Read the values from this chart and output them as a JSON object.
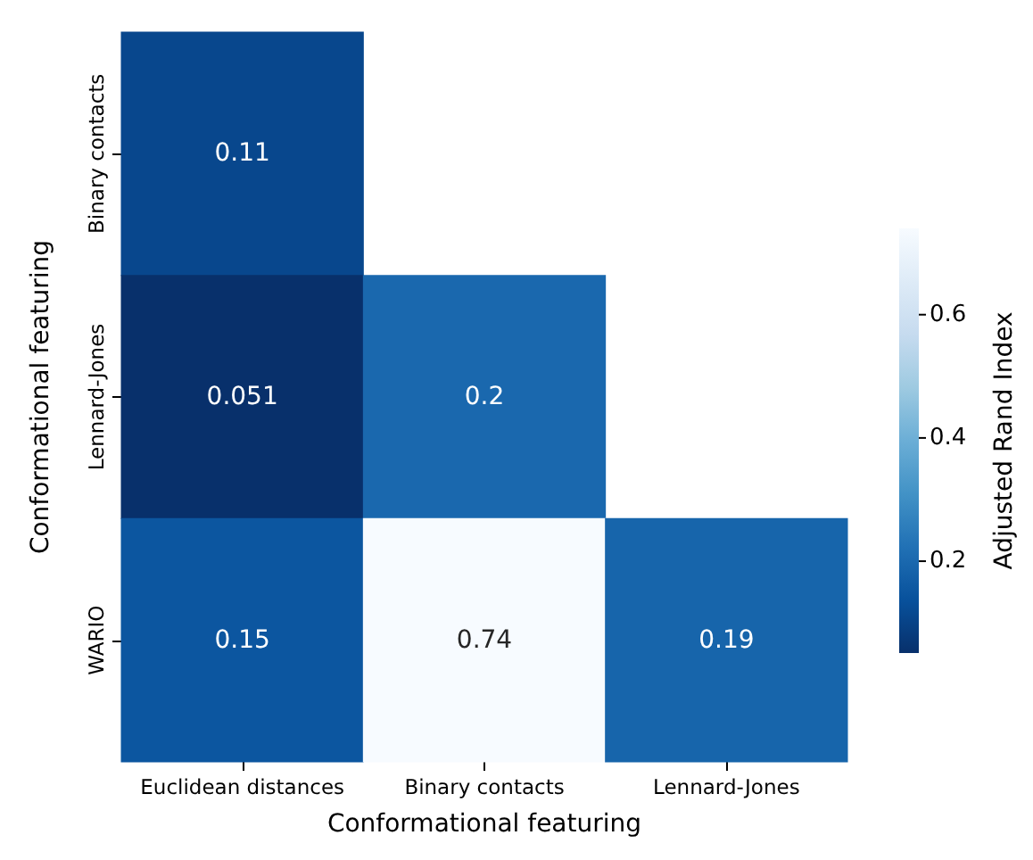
{
  "chart_data": {
    "type": "heatmap",
    "xlabel": "Conformational featuring",
    "ylabel": "Conformational featuring",
    "clabel": "Adjusted Rand Index",
    "categories": [
      "Euclidean distances",
      "Binary contacts",
      "Lennard-Jones"
    ],
    "y_categories": [
      "Binary contacts",
      "Lennard-Jones",
      "WARIO"
    ],
    "cells": [
      [
        0.11,
        null,
        null
      ],
      [
        0.051,
        0.2,
        null
      ],
      [
        0.15,
        0.74,
        0.19
      ]
    ],
    "data_labels": true,
    "clim": [
      0.051,
      0.74
    ],
    "cticks": [
      0.2,
      0.4,
      0.6
    ]
  }
}
